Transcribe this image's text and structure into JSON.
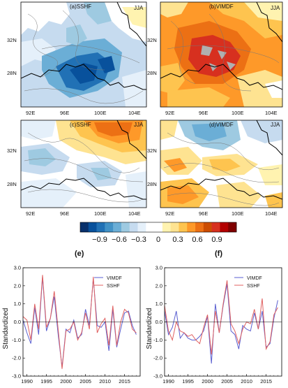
{
  "maps": [
    {
      "id": "a",
      "title": "(a)SSHF",
      "season": "JJA",
      "theme": "blue"
    },
    {
      "id": "b",
      "title": "(b)VIMDF",
      "season": "JJA",
      "theme": "red"
    },
    {
      "id": "c",
      "title": "(c)SSHF",
      "season": "JJA",
      "theme": "mixed-orange"
    },
    {
      "id": "d",
      "title": "(d)VIMDF",
      "season": "JJA",
      "theme": "mixed-blue"
    }
  ],
  "map_axes": {
    "lon_ticks": [
      "92E",
      "96E",
      "100E",
      "104E"
    ],
    "lat_ticks": [
      "32N",
      "28N"
    ]
  },
  "colorbar": {
    "labels": [
      "−0.9",
      "−0.6",
      "−0.3",
      "0",
      "0.3",
      "0.6",
      "0.9"
    ],
    "colors": [
      "#08306b",
      "#08519c",
      "#2171b5",
      "#4292c6",
      "#6baed6",
      "#9ecae1",
      "#c6dbef",
      "#e5f0fa",
      "#ffffff",
      "#ffffff",
      "#fff3b0",
      "#fee391",
      "#fec44f",
      "#fe9929",
      "#ec7014",
      "#cc4c02",
      "#d7301f",
      "#b30000",
      "#7f0000"
    ]
  },
  "chart_data": [
    {
      "type": "line",
      "panel": "(e)",
      "ylabel": "Standardized",
      "ylim": [
        -3.0,
        3.0
      ],
      "yticks": [
        "3.0",
        "2.0",
        "1.0",
        "0.0",
        "-1.0",
        "-2.0",
        "-3.0"
      ],
      "xticks": [
        "1990",
        "1995",
        "2000",
        "2005",
        "2010",
        "2015"
      ],
      "x": [
        1989,
        1990,
        1991,
        1992,
        1993,
        1994,
        1995,
        1996,
        1997,
        1998,
        1999,
        2000,
        2001,
        2002,
        2003,
        2004,
        2005,
        2006,
        2007,
        2008,
        2009,
        2010,
        2011,
        2012,
        2013,
        2014,
        2015,
        2016,
        2017,
        2018
      ],
      "xlim": [
        1989,
        2019
      ],
      "series": [
        {
          "name": "VIMDF",
          "color": "#5a5fd0",
          "values": [
            0.1,
            -0.6,
            -1.2,
            0.8,
            -0.7,
            2.5,
            -0.5,
            0.2,
            1.4,
            -0.7,
            -2.5,
            -0.4,
            -0.6,
            0.1,
            -0.9,
            -0.7,
            0.7,
            -0.2,
            2.4,
            -0.2,
            -0.3,
            0.0,
            -1.6,
            0.7,
            -1.4,
            -0.4,
            0.5,
            0.6,
            -0.2,
            -0.7
          ]
        },
        {
          "name": "SSHF",
          "color": "#e06060",
          "values": [
            0.3,
            0.1,
            -1.0,
            1.0,
            -0.4,
            2.6,
            -0.3,
            0.2,
            1.7,
            -0.4,
            -2.6,
            -0.5,
            -0.4,
            0.0,
            -1.0,
            -0.6,
            0.5,
            -0.4,
            2.5,
            -0.6,
            -0.1,
            0.2,
            -1.3,
            0.9,
            -1.3,
            0.0,
            0.7,
            0.5,
            -0.4,
            -0.6
          ]
        }
      ],
      "legend": "top-right"
    },
    {
      "type": "line",
      "panel": "(f)",
      "ylabel": "Standardized",
      "ylim": [
        -3.0,
        3.0
      ],
      "yticks": [
        "3.0",
        "2.0",
        "1.0",
        "0.0",
        "-1.0",
        "-2.0",
        "-3.0"
      ],
      "xticks": [
        "1990",
        "1995",
        "2000",
        "2005",
        "2010",
        "2015"
      ],
      "x": [
        1989,
        1990,
        1991,
        1992,
        1993,
        1994,
        1995,
        1996,
        1997,
        1998,
        1999,
        2000,
        2001,
        2002,
        2003,
        2004,
        2005,
        2006,
        2007,
        2008,
        2009,
        2010,
        2011,
        2012,
        2013,
        2014,
        2015,
        2016,
        2017,
        2018
      ],
      "xlim": [
        1989,
        2019
      ],
      "series": [
        {
          "name": "VIMDF",
          "color": "#5a5fd0",
          "values": [
            0.6,
            -0.7,
            -0.3,
            0.6,
            -0.9,
            -0.6,
            -0.9,
            -1.0,
            -1.0,
            -0.8,
            -0.5,
            0.3,
            -2.3,
            1.0,
            -0.6,
            0.9,
            2.1,
            -0.5,
            -0.7,
            -1.5,
            -0.2,
            -0.4,
            -0.5,
            0.5,
            -0.4,
            0.6,
            -1.4,
            -1.2,
            0.2,
            1.2
          ]
        },
        {
          "name": "SSHF",
          "color": "#e06060",
          "values": [
            0.9,
            -0.5,
            -1.0,
            0.0,
            -0.5,
            -0.6,
            -0.8,
            -0.7,
            -1.0,
            -1.2,
            -0.3,
            0.4,
            -1.8,
            0.6,
            -0.6,
            1.0,
            2.3,
            -0.1,
            -0.5,
            -1.2,
            -0.4,
            0.0,
            -0.1,
            0.7,
            -0.4,
            1.3,
            -1.5,
            -1.1,
            0.4,
            0.8
          ]
        }
      ],
      "legend": "top-right"
    }
  ]
}
